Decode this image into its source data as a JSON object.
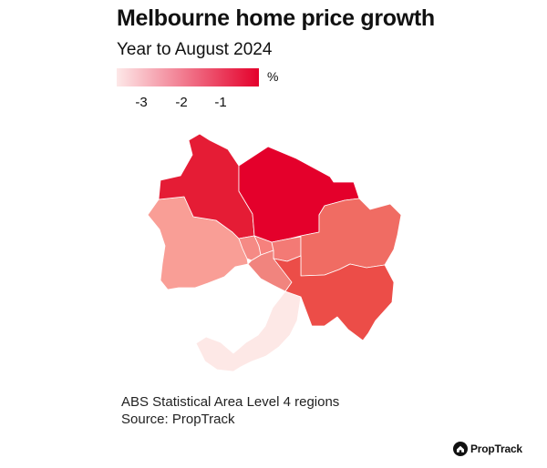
{
  "title": "Melbourne home price growth",
  "subtitle": "Year to August 2024",
  "legend": {
    "unit": "%",
    "ticks": [
      "-3",
      "-2",
      "-1"
    ],
    "color_low": "#fde8e8",
    "color_high": "#e4002b"
  },
  "regions": [
    {
      "id": "north-west",
      "color": "#e51c35"
    },
    {
      "id": "north-east",
      "color": "#e4002b"
    },
    {
      "id": "west",
      "color": "#f99e96"
    },
    {
      "id": "inner-west",
      "color": "#f58a85"
    },
    {
      "id": "inner",
      "color": "#f6817d"
    },
    {
      "id": "inner-east",
      "color": "#f37a75"
    },
    {
      "id": "outer-east",
      "color": "#f06c63"
    },
    {
      "id": "inner-south",
      "color": "#f1847e"
    },
    {
      "id": "south-east",
      "color": "#ec4d48"
    },
    {
      "id": "mornington-peninsula",
      "color": "#fde8e6"
    }
  ],
  "footnotes": [
    "ABS Statistical Area Level 4 regions",
    "Source: PropTrack"
  ],
  "brand": {
    "name": "PropTrack"
  }
}
